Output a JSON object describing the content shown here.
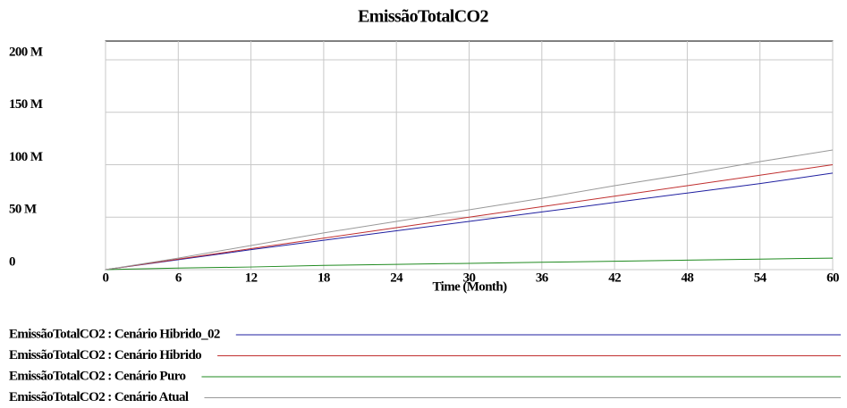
{
  "chart_data": {
    "type": "line",
    "title": "EmissãoTotalCO2",
    "x_label": "Time (Month)",
    "x": [
      0,
      6,
      12,
      18,
      24,
      30,
      36,
      42,
      48,
      54,
      60
    ],
    "xlim": [
      0,
      60
    ],
    "xticks": [
      0,
      6,
      12,
      18,
      24,
      30,
      36,
      42,
      48,
      54,
      60
    ],
    "ylim": [
      0,
      200
    ],
    "yticks": [
      {
        "value": 0,
        "label": "0"
      },
      {
        "value": 50,
        "label": "50 M"
      },
      {
        "value": 100,
        "label": "100 M"
      },
      {
        "value": 150,
        "label": "150 M"
      },
      {
        "value": 200,
        "label": "200 M"
      }
    ],
    "grid": true,
    "series": [
      {
        "name": "EmissãoTotalCO2 : Cenário Hibrido_02",
        "color": "#1f1fa0",
        "values": [
          0,
          9.5,
          19,
          28,
          37,
          46,
          55,
          64,
          73,
          82,
          92
        ]
      },
      {
        "name": "EmissãoTotalCO2 : Cenário Hibrido",
        "color": "#c03030",
        "values": [
          0,
          10,
          20,
          30,
          40,
          50,
          60,
          70,
          80,
          90,
          100
        ]
      },
      {
        "name": "EmissãoTotalCO2 : Cenário Puro",
        "color": "#1f8a1f",
        "values": [
          0,
          1.5,
          2.5,
          4,
          5,
          6,
          7,
          8,
          9,
          10,
          11
        ]
      },
      {
        "name": "EmissãoTotalCO2 : Cenário Atual",
        "color": "#999999",
        "values": [
          0,
          11,
          23,
          35,
          46,
          57,
          68,
          80,
          91,
          103,
          114
        ]
      }
    ]
  }
}
